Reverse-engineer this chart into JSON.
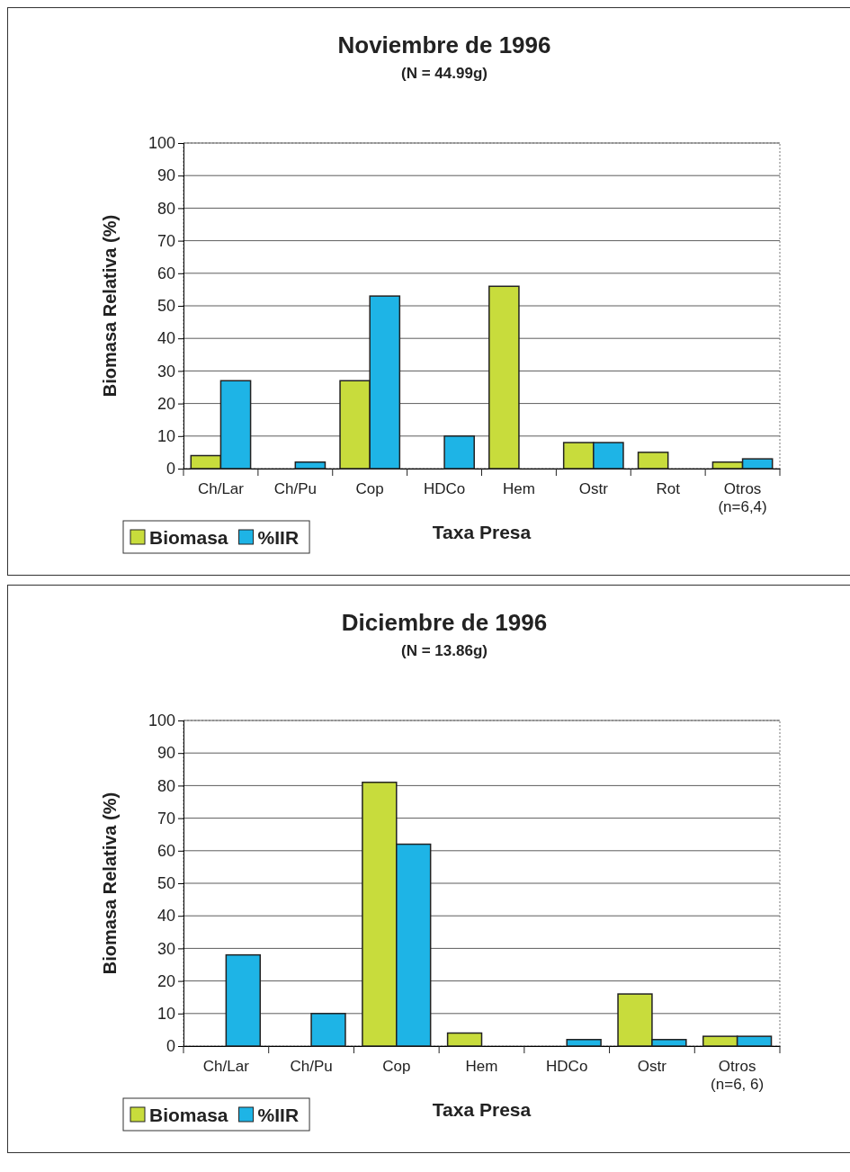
{
  "chart_data": [
    {
      "type": "bar",
      "title": "Noviembre de 1996",
      "subtitle": "(N = 44.99g)",
      "xlabel": "Taxa Presa",
      "ylabel": "Biomasa Relativa (%)",
      "categories": [
        "Ch/Lar",
        "Ch/Pu",
        "Cop",
        "HDCo",
        "Hem",
        "Ostr",
        "Rot",
        "Otros\n(n=6,4)"
      ],
      "series": [
        {
          "name": "Biomasa",
          "color": "#c8dc3c",
          "values": [
            4,
            null,
            27,
            null,
            56,
            8,
            5,
            2
          ]
        },
        {
          "name": "%IIR",
          "color": "#1eb4e6",
          "values": [
            27,
            2,
            53,
            10,
            null,
            8,
            null,
            3
          ]
        }
      ],
      "ylim": [
        0,
        100
      ],
      "yticks": [
        0,
        10,
        20,
        30,
        40,
        50,
        60,
        70,
        80,
        90,
        100
      ],
      "grid": "y",
      "legend": "bottom left"
    },
    {
      "type": "bar",
      "title": "Diciembre de 1996",
      "subtitle": "(N = 13.86g)",
      "xlabel": "Taxa Presa",
      "ylabel": "Biomasa Relativa (%)",
      "categories": [
        "Ch/Lar",
        "Ch/Pu",
        "Cop",
        "Hem",
        "HDCo",
        "Ostr",
        "Otros\n(n=6, 6)"
      ],
      "series": [
        {
          "name": "Biomasa",
          "color": "#c8dc3c",
          "values": [
            null,
            null,
            81,
            4,
            null,
            16,
            3
          ]
        },
        {
          "name": "%IIR",
          "color": "#1eb4e6",
          "values": [
            28,
            10,
            62,
            null,
            2,
            2,
            3
          ]
        }
      ],
      "ylim": [
        0,
        100
      ],
      "yticks": [
        0,
        10,
        20,
        30,
        40,
        50,
        60,
        70,
        80,
        90,
        100
      ],
      "grid": "y",
      "legend": "bottom left"
    }
  ]
}
